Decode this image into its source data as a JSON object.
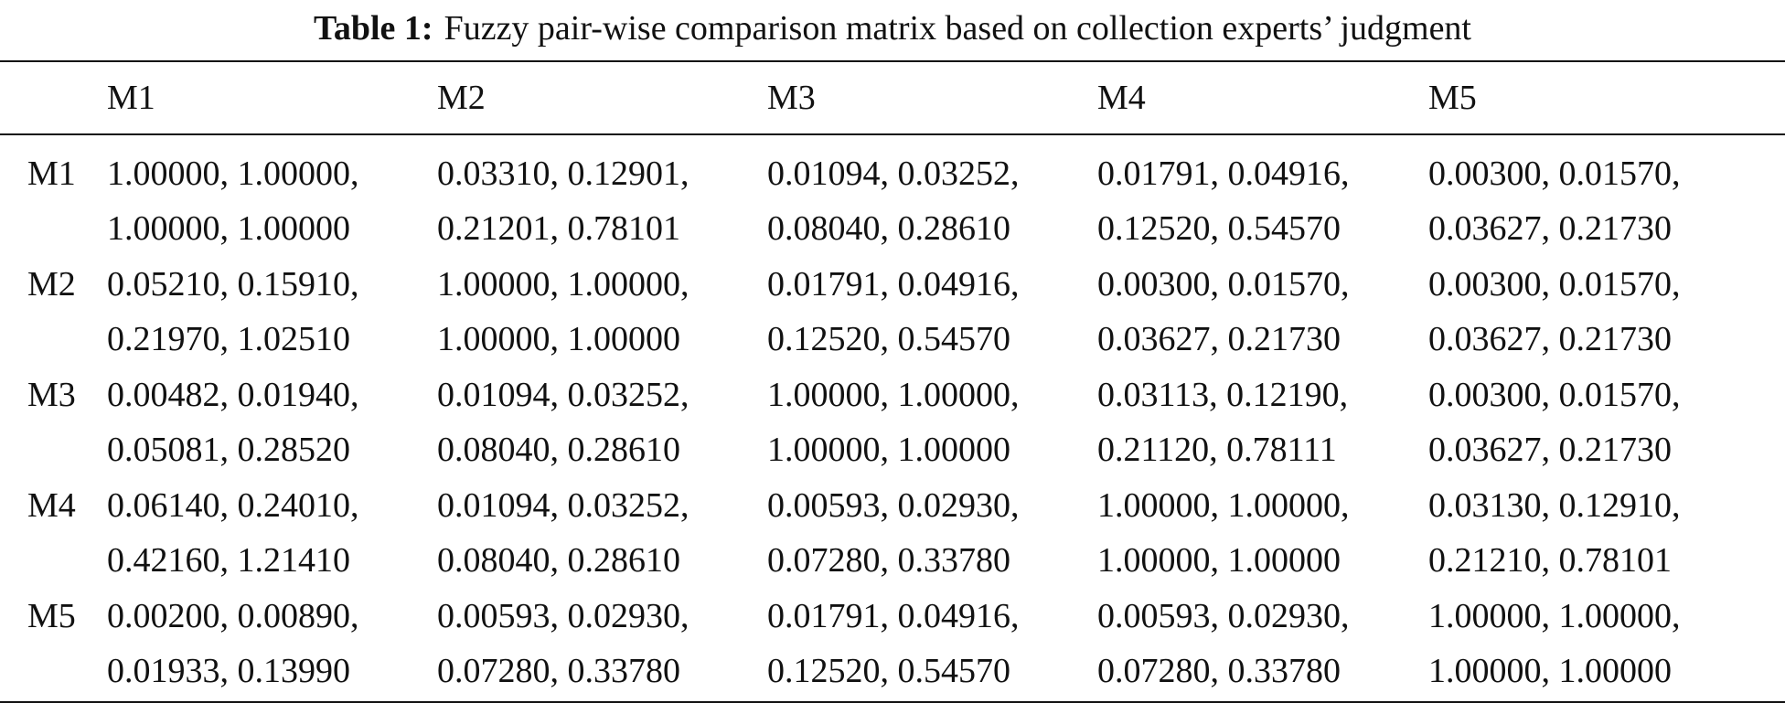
{
  "caption": {
    "label": "Table 1:",
    "text": "Fuzzy pair-wise comparison matrix based on collection experts’ judgment"
  },
  "table": {
    "columns": [
      "",
      "M1",
      "M2",
      "M3",
      "M4",
      "M5"
    ],
    "rows": [
      {
        "label": "M1",
        "cells": [
          [
            "1.00000, 1.00000,",
            "1.00000, 1.00000"
          ],
          [
            "0.03310, 0.12901,",
            "0.21201, 0.78101"
          ],
          [
            "0.01094, 0.03252,",
            "0.08040, 0.28610"
          ],
          [
            "0.01791, 0.04916,",
            "0.12520, 0.54570"
          ],
          [
            "0.00300, 0.01570,",
            "0.03627, 0.21730"
          ]
        ]
      },
      {
        "label": "M2",
        "cells": [
          [
            "0.05210, 0.15910,",
            "0.21970, 1.02510"
          ],
          [
            "1.00000, 1.00000,",
            "1.00000, 1.00000"
          ],
          [
            "0.01791, 0.04916,",
            "0.12520, 0.54570"
          ],
          [
            "0.00300, 0.01570,",
            "0.03627, 0.21730"
          ],
          [
            "0.00300, 0.01570,",
            "0.03627, 0.21730"
          ]
        ]
      },
      {
        "label": "M3",
        "cells": [
          [
            "0.00482, 0.01940,",
            "0.05081, 0.28520"
          ],
          [
            "0.01094, 0.03252,",
            "0.08040, 0.28610"
          ],
          [
            "1.00000, 1.00000,",
            "1.00000, 1.00000"
          ],
          [
            "0.03113, 0.12190,",
            "0.21120, 0.78111"
          ],
          [
            "0.00300, 0.01570,",
            "0.03627, 0.21730"
          ]
        ]
      },
      {
        "label": "M4",
        "cells": [
          [
            "0.06140, 0.24010,",
            "0.42160, 1.21410"
          ],
          [
            "0.01094, 0.03252,",
            "0.08040, 0.28610"
          ],
          [
            "0.00593, 0.02930,",
            "0.07280, 0.33780"
          ],
          [
            "1.00000, 1.00000,",
            "1.00000, 1.00000"
          ],
          [
            "0.03130, 0.12910,",
            "0.21210, 0.78101"
          ]
        ]
      },
      {
        "label": "M5",
        "cells": [
          [
            "0.00200, 0.00890,",
            "0.01933, 0.13990"
          ],
          [
            "0.00593, 0.02930,",
            "0.07280, 0.33780"
          ],
          [
            "0.01791, 0.04916,",
            "0.12520, 0.54570"
          ],
          [
            "0.00593, 0.02930,",
            "0.07280, 0.33780"
          ],
          [
            "1.00000, 1.00000,",
            "1.00000, 1.00000"
          ]
        ]
      }
    ]
  }
}
